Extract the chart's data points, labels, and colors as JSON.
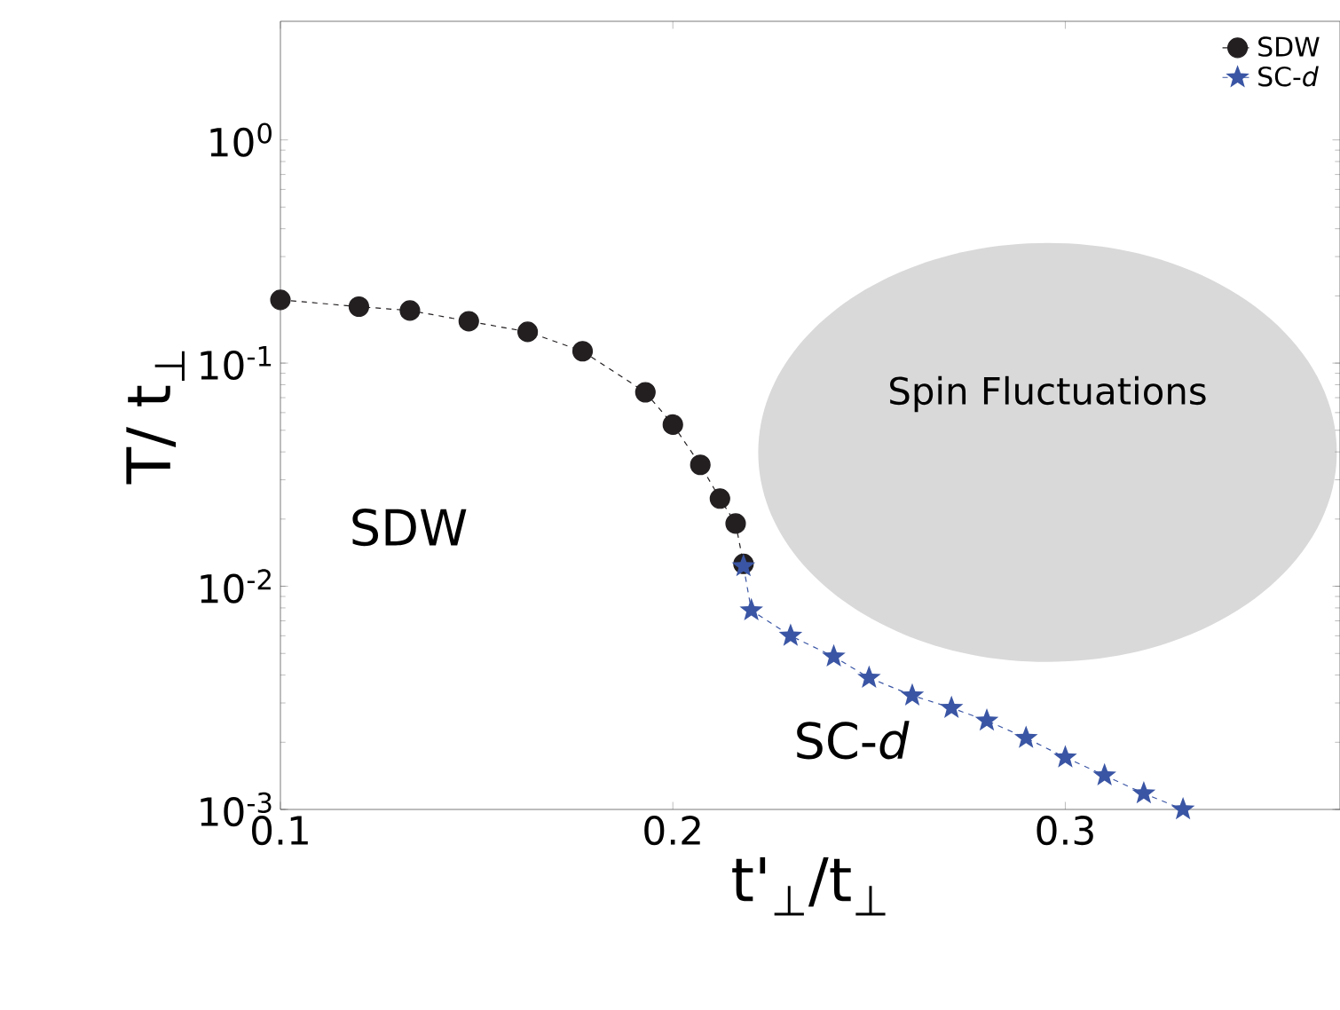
{
  "chart_data": {
    "type": "line",
    "xlabel": "t'$_{⊥}$/t$_{⊥}$",
    "ylabel": "T/ t$_{⊥}$",
    "xlim": [
      0.1,
      0.37
    ],
    "xticks": [
      0.1,
      0.2,
      0.3
    ],
    "ylim": [
      0.001,
      3.4
    ],
    "log": "y",
    "yticks": [
      {
        "value": 0.001,
        "label": "10$^{-3}$"
      },
      {
        "value": 0.01,
        "label": "10$^{-2}$"
      },
      {
        "value": 0.1,
        "label": "10$^{-1}$"
      },
      {
        "value": 1,
        "label": "10$^{0}$"
      }
    ],
    "line_style": "dashed",
    "legend": "top right",
    "grid": false,
    "series": [
      {
        "name": "SDW",
        "color": "#231f20",
        "marker": "circle",
        "x": [
          0.1,
          0.12,
          0.133,
          0.148,
          0.163,
          0.177,
          0.193,
          0.2,
          0.207,
          0.212,
          0.216,
          0.218
        ],
        "values": [
          0.192,
          0.179,
          0.172,
          0.154,
          0.138,
          0.113,
          0.074,
          0.053,
          0.035,
          0.0247,
          0.0191,
          0.0126
        ]
      },
      {
        "name": "SC-*d*",
        "color": "#3a55a4",
        "marker": "star",
        "x": [
          0.218,
          0.22,
          0.23,
          0.241,
          0.25,
          0.261,
          0.271,
          0.28,
          0.29,
          0.3,
          0.31,
          0.32,
          0.33
        ],
        "values": [
          0.0123,
          0.0078,
          0.006,
          0.00484,
          0.00389,
          0.00324,
          0.00285,
          0.0025,
          0.00209,
          0.00171,
          0.00142,
          0.00118,
          0.001
        ]
      }
    ],
    "annotations": [
      "SDW",
      "SC-*d*",
      "Spin Fluctuations"
    ]
  }
}
